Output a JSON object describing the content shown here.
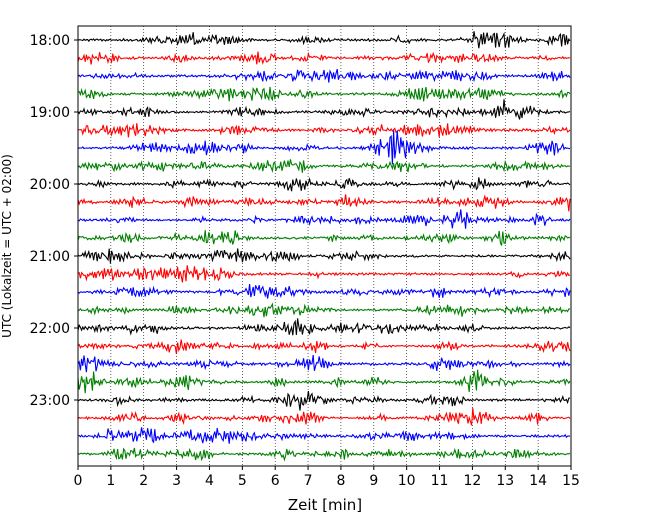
{
  "chart_data": {
    "type": "line",
    "title": "",
    "xlabel": "Zeit  [min]",
    "ylabel": "UTC (Lokalzeit = UTC + 02:00)",
    "xlim": [
      0,
      15
    ],
    "x_ticks": [
      "0",
      "1",
      "2",
      "3",
      "4",
      "5",
      "6",
      "7",
      "8",
      "9",
      "10",
      "11",
      "12",
      "13",
      "14",
      "15"
    ],
    "y_ticks": [
      "18:00",
      "19:00",
      "20:00",
      "21:00",
      "22:00",
      "23:00"
    ],
    "trace_minutes": 15,
    "traces_per_hour": 4,
    "num_traces": 24,
    "trace_colors": [
      "#000000",
      "#ff0000",
      "#0000ff",
      "#007f00"
    ],
    "grid": "vertical dotted lines at each minute"
  }
}
